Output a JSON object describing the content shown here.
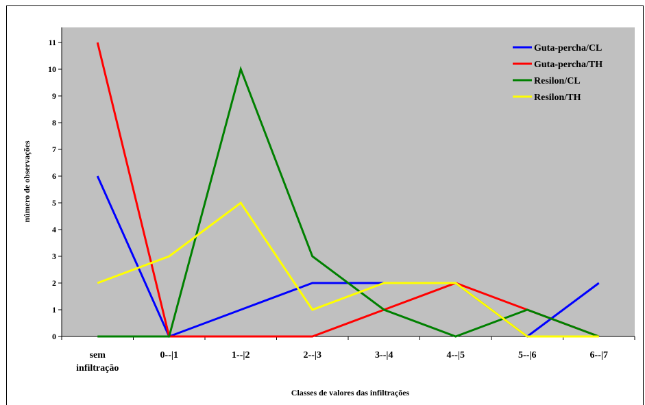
{
  "chart_data": {
    "type": "line",
    "title": "",
    "xlabel": "Classes de valores das infiltrações",
    "ylabel": "número de observações",
    "ylim": [
      0,
      11
    ],
    "yticks": [
      "0",
      "1",
      "2",
      "3",
      "4",
      "5",
      "6",
      "7",
      "8",
      "9",
      "10",
      "11"
    ],
    "categories": [
      [
        "sem",
        "infiltração"
      ],
      [
        "0--|1"
      ],
      [
        "1--|2"
      ],
      [
        "2--|3"
      ],
      [
        "3--|4"
      ],
      [
        "4--|5"
      ],
      [
        "5--|6"
      ],
      [
        "6--|7"
      ]
    ],
    "grid": false,
    "legend_position": "top-right",
    "plot_background": "#c0c0c0",
    "series": [
      {
        "name": "Guta-percha/CL",
        "color": "#0000ff",
        "values": [
          6,
          0,
          1,
          2,
          2,
          2,
          0,
          2
        ]
      },
      {
        "name": "Guta-percha/TH",
        "color": "#ff0000",
        "values": [
          11,
          0,
          0,
          0,
          1,
          2,
          1,
          0
        ]
      },
      {
        "name": "Resilon/CL",
        "color": "#008000",
        "values": [
          0,
          0,
          10,
          3,
          1,
          0,
          1,
          0
        ]
      },
      {
        "name": "Resilon/TH",
        "color": "#ffff00",
        "values": [
          2,
          3,
          5,
          1,
          2,
          2,
          0,
          0
        ]
      }
    ]
  }
}
